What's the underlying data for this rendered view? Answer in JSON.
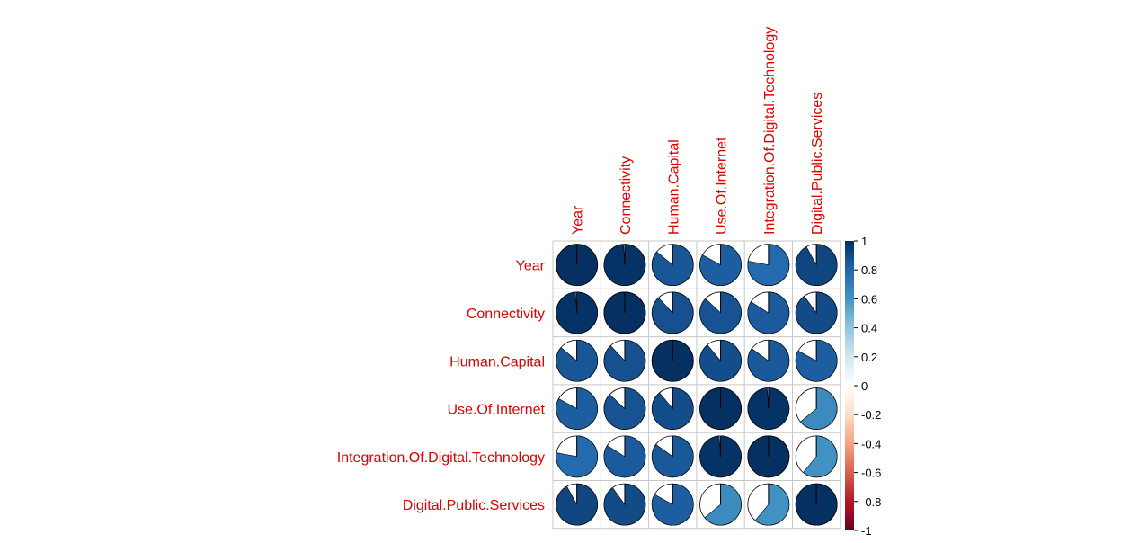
{
  "colors": {
    "label": "#e00000",
    "grid": "#c8c8c8",
    "pie_outline": "#000000",
    "background": "#ffffff",
    "colorbar_stops": [
      "#67001f",
      "#b2182b",
      "#d6604d",
      "#f4a582",
      "#fddbc7",
      "#ffffff",
      "#d1e5f0",
      "#92c5de",
      "#4393c3",
      "#2166ac",
      "#053061"
    ]
  },
  "chart_data": {
    "type": "heatmap",
    "glyph": "pie",
    "variables": [
      "Year",
      "Connectivity",
      "Human.Capital",
      "Use.Of.Internet",
      "Integration.Of.Digital.Technology",
      "Digital.Public.Services"
    ],
    "matrix": [
      [
        1.0,
        0.99,
        0.86,
        0.83,
        0.78,
        0.92
      ],
      [
        0.99,
        1.0,
        0.88,
        0.87,
        0.84,
        0.9
      ],
      [
        0.86,
        0.88,
        1.0,
        0.89,
        0.85,
        0.83
      ],
      [
        0.83,
        0.87,
        0.89,
        1.0,
        0.99,
        0.64
      ],
      [
        0.78,
        0.84,
        0.85,
        0.99,
        1.0,
        0.61
      ],
      [
        0.92,
        0.9,
        0.83,
        0.64,
        0.61,
        1.0
      ]
    ],
    "colorbar": {
      "range": [
        -1,
        1
      ],
      "tick_labels": [
        "1",
        "0.8",
        "0.6",
        "0.4",
        "0.2",
        "0",
        "-0.2",
        "-0.4",
        "-0.6",
        "-0.8",
        "-1"
      ]
    },
    "grid": true
  }
}
